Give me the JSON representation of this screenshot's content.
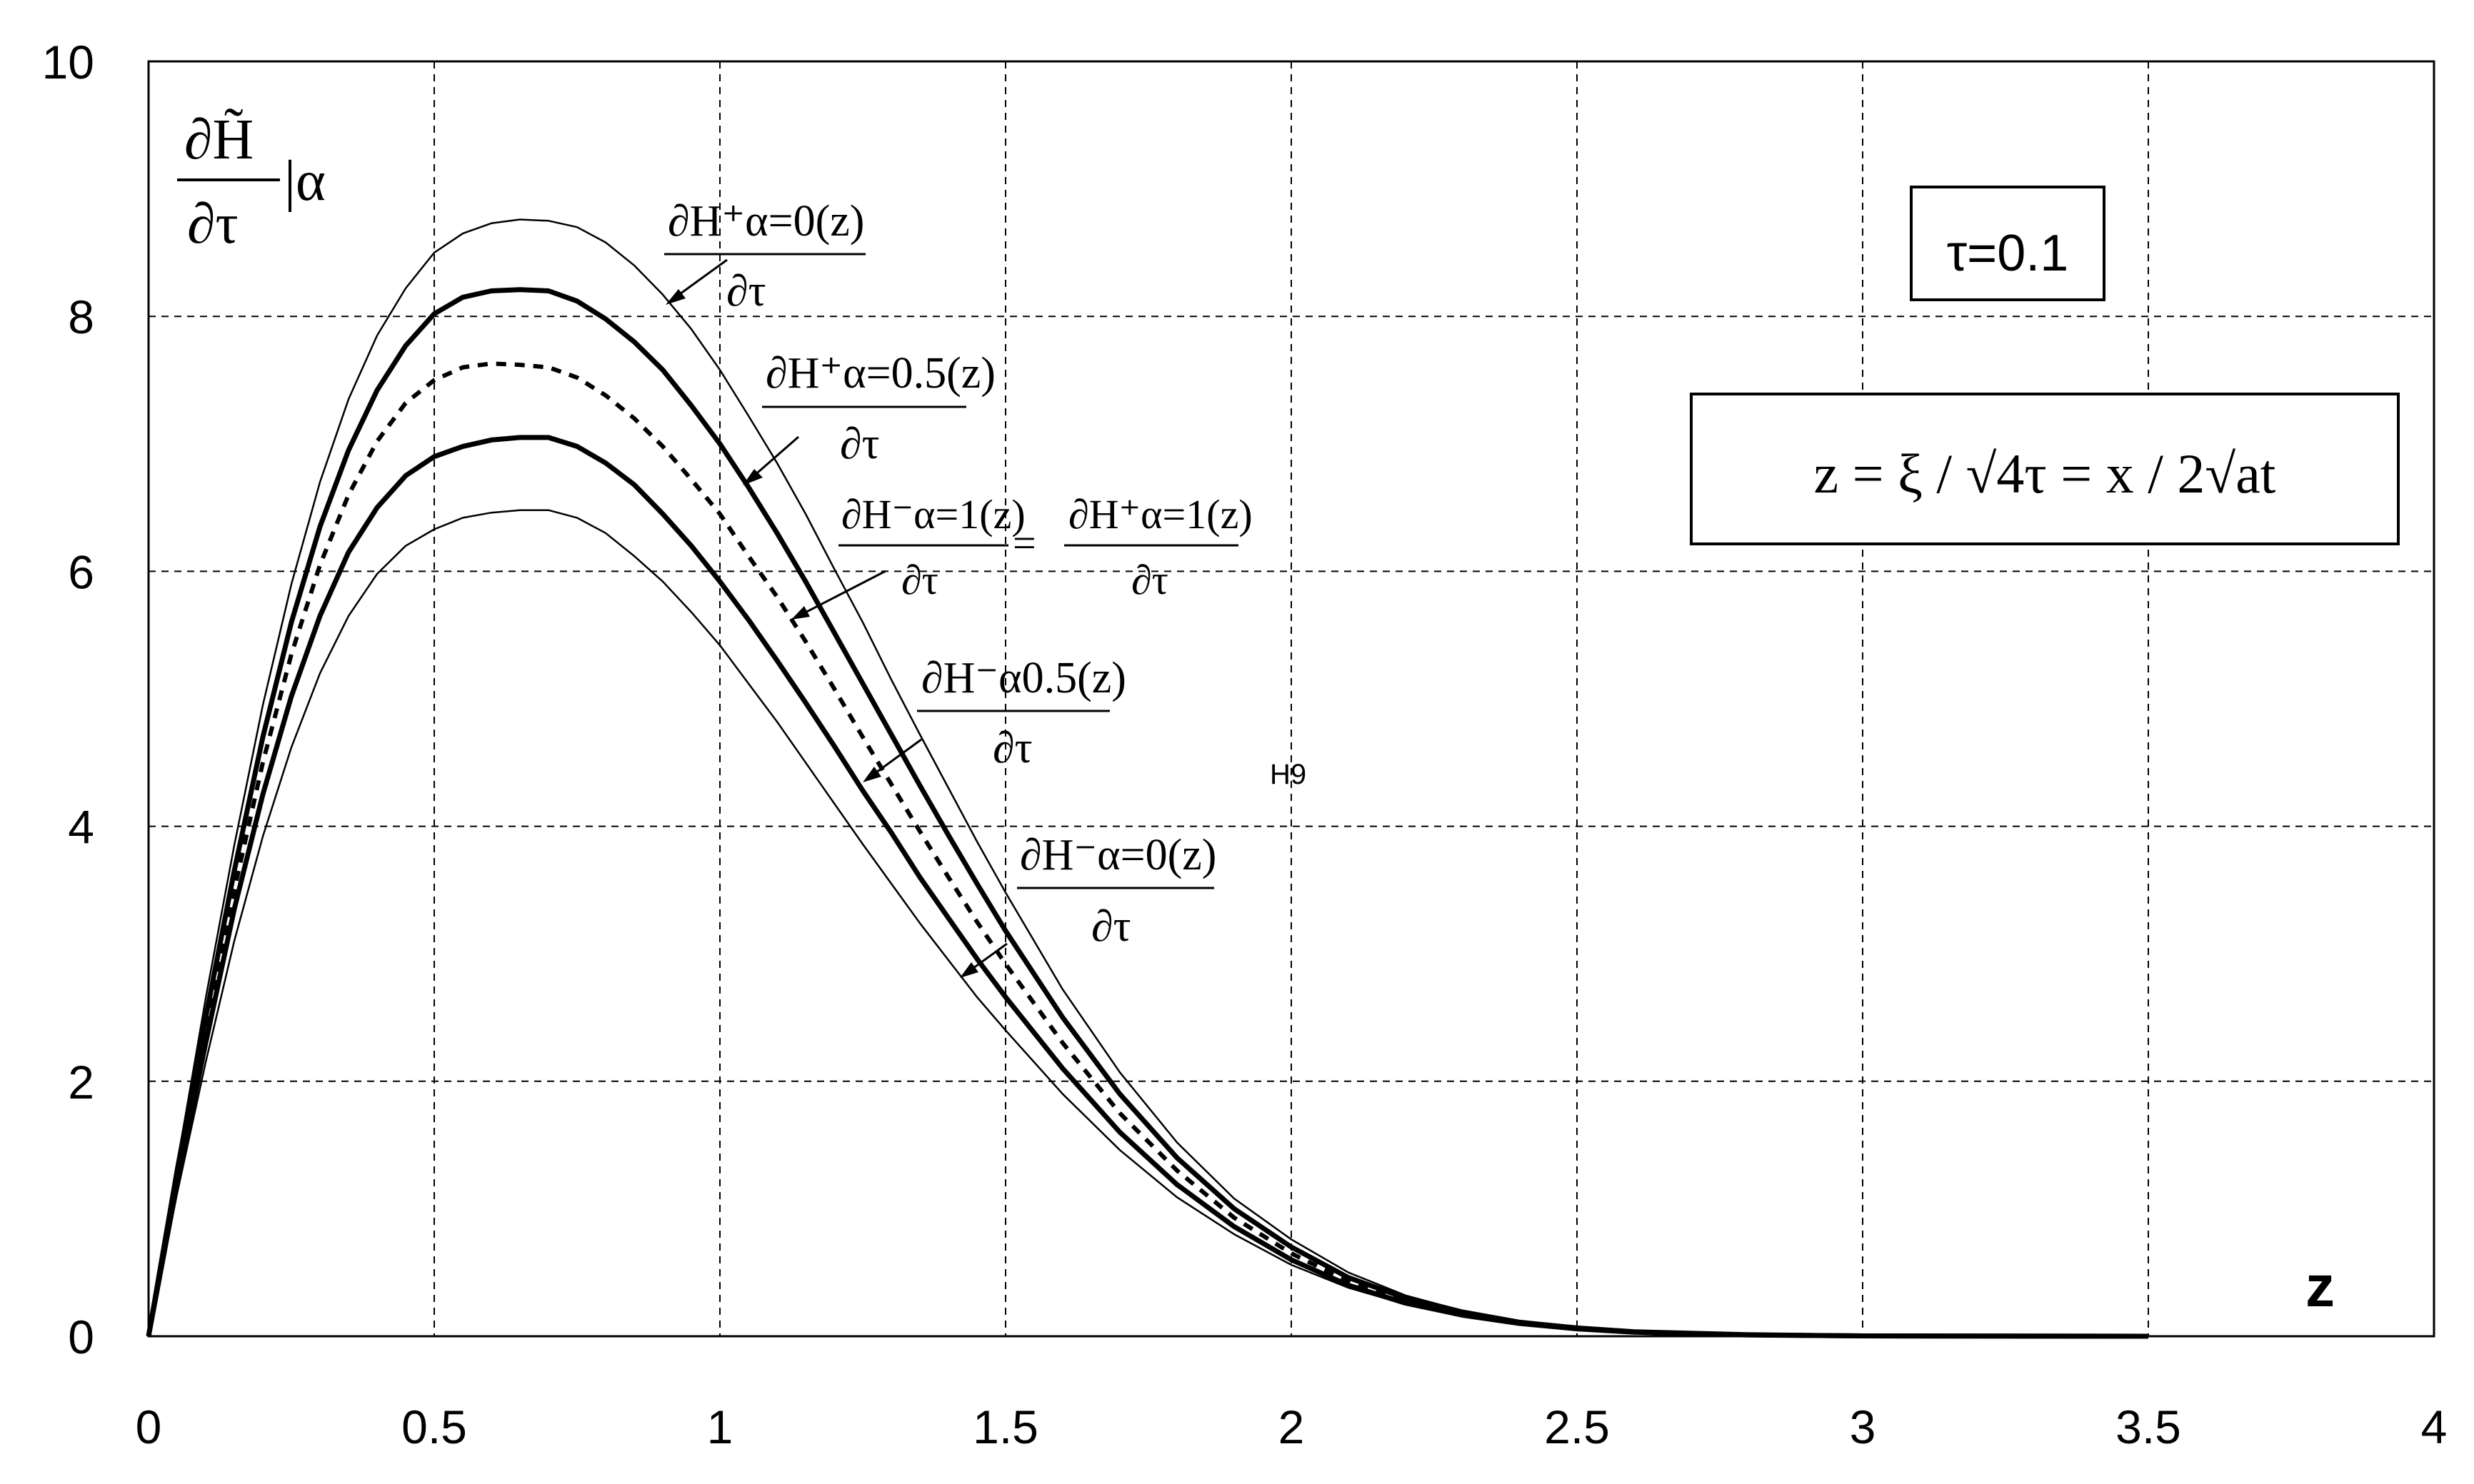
{
  "chart_data": {
    "type": "line",
    "xlim": [
      0,
      4
    ],
    "ylim": [
      0,
      10
    ],
    "x_ticks": [
      "0",
      "0.5",
      "1",
      "1.5",
      "2",
      "2.5",
      "3",
      "3.5",
      "4"
    ],
    "y_ticks": [
      "0",
      "2",
      "4",
      "6",
      "8",
      "10"
    ],
    "grid": true,
    "x_axis_label": "z",
    "y_axis_label": {
      "numerator": "∂H̃",
      "denominator": "∂τ",
      "suffix": "|α"
    },
    "tau_box": "τ=0.1",
    "formula_box": "z = ξ / √4τ = x / 2√at",
    "stray_label": "H9",
    "series": [
      {
        "label_num": "∂H⁺α=0(z)",
        "label_den": "∂τ",
        "style": "thin",
        "points": [
          [
            0,
            0
          ],
          [
            0.05,
            1.35
          ],
          [
            0.1,
            2.65
          ],
          [
            0.15,
            3.85
          ],
          [
            0.2,
            4.95
          ],
          [
            0.25,
            5.9
          ],
          [
            0.3,
            6.7
          ],
          [
            0.35,
            7.35
          ],
          [
            0.4,
            7.85
          ],
          [
            0.45,
            8.22
          ],
          [
            0.5,
            8.5
          ],
          [
            0.55,
            8.65
          ],
          [
            0.6,
            8.73
          ],
          [
            0.65,
            8.76
          ],
          [
            0.7,
            8.75
          ],
          [
            0.75,
            8.7
          ],
          [
            0.8,
            8.58
          ],
          [
            0.85,
            8.4
          ],
          [
            0.9,
            8.17
          ],
          [
            0.95,
            7.9
          ],
          [
            1.0,
            7.58
          ],
          [
            1.05,
            7.22
          ],
          [
            1.1,
            6.85
          ],
          [
            1.15,
            6.45
          ],
          [
            1.2,
            6.02
          ],
          [
            1.25,
            5.6
          ],
          [
            1.3,
            5.15
          ],
          [
            1.35,
            4.72
          ],
          [
            1.4,
            4.3
          ],
          [
            1.45,
            3.88
          ],
          [
            1.5,
            3.48
          ],
          [
            1.6,
            2.72
          ],
          [
            1.7,
            2.07
          ],
          [
            1.8,
            1.52
          ],
          [
            1.9,
            1.08
          ],
          [
            2.0,
            0.76
          ],
          [
            2.1,
            0.5
          ],
          [
            2.2,
            0.32
          ],
          [
            2.3,
            0.2
          ],
          [
            2.4,
            0.12
          ],
          [
            2.5,
            0.07
          ],
          [
            2.6,
            0.04
          ],
          [
            2.8,
            0.015
          ],
          [
            3.0,
            0.004
          ],
          [
            3.5,
            0
          ]
        ]
      },
      {
        "label_num": "∂H⁺α=0.5(z)",
        "label_den": "∂τ",
        "style": "thick",
        "points": [
          [
            0,
            0
          ],
          [
            0.05,
            1.3
          ],
          [
            0.1,
            2.5
          ],
          [
            0.15,
            3.65
          ],
          [
            0.2,
            4.7
          ],
          [
            0.25,
            5.6
          ],
          [
            0.3,
            6.35
          ],
          [
            0.35,
            6.95
          ],
          [
            0.4,
            7.42
          ],
          [
            0.45,
            7.77
          ],
          [
            0.5,
            8.02
          ],
          [
            0.55,
            8.15
          ],
          [
            0.6,
            8.2
          ],
          [
            0.65,
            8.21
          ],
          [
            0.7,
            8.2
          ],
          [
            0.75,
            8.12
          ],
          [
            0.8,
            7.98
          ],
          [
            0.85,
            7.8
          ],
          [
            0.9,
            7.58
          ],
          [
            0.95,
            7.3
          ],
          [
            1.0,
            7.0
          ],
          [
            1.05,
            6.66
          ],
          [
            1.1,
            6.3
          ],
          [
            1.15,
            5.92
          ],
          [
            1.2,
            5.52
          ],
          [
            1.25,
            5.12
          ],
          [
            1.3,
            4.72
          ],
          [
            1.35,
            4.32
          ],
          [
            1.4,
            3.93
          ],
          [
            1.45,
            3.55
          ],
          [
            1.5,
            3.18
          ],
          [
            1.6,
            2.5
          ],
          [
            1.7,
            1.9
          ],
          [
            1.8,
            1.4
          ],
          [
            1.9,
            1.0
          ],
          [
            2.0,
            0.7
          ],
          [
            2.1,
            0.46
          ],
          [
            2.2,
            0.3
          ],
          [
            2.3,
            0.19
          ],
          [
            2.4,
            0.11
          ],
          [
            2.5,
            0.065
          ],
          [
            2.6,
            0.035
          ],
          [
            2.8,
            0.012
          ],
          [
            3.0,
            0.003
          ],
          [
            3.5,
            0
          ]
        ]
      },
      {
        "label_num": "∂H⁻α=1(z)",
        "label_den": "∂τ",
        "label_eq": "=",
        "label_num2": "∂H⁺α=1(z)",
        "label_den2": "∂τ",
        "style": "dashed",
        "points": [
          [
            0,
            0
          ],
          [
            0.05,
            1.25
          ],
          [
            0.1,
            2.4
          ],
          [
            0.15,
            3.5
          ],
          [
            0.2,
            4.5
          ],
          [
            0.25,
            5.35
          ],
          [
            0.3,
            6.05
          ],
          [
            0.35,
            6.6
          ],
          [
            0.4,
            7.02
          ],
          [
            0.45,
            7.32
          ],
          [
            0.5,
            7.5
          ],
          [
            0.55,
            7.6
          ],
          [
            0.6,
            7.63
          ],
          [
            0.65,
            7.62
          ],
          [
            0.7,
            7.6
          ],
          [
            0.75,
            7.52
          ],
          [
            0.8,
            7.38
          ],
          [
            0.85,
            7.2
          ],
          [
            0.9,
            6.98
          ],
          [
            0.95,
            6.72
          ],
          [
            1.0,
            6.45
          ],
          [
            1.05,
            6.12
          ],
          [
            1.1,
            5.8
          ],
          [
            1.15,
            5.45
          ],
          [
            1.2,
            5.08
          ],
          [
            1.25,
            4.7
          ],
          [
            1.3,
            4.33
          ],
          [
            1.35,
            3.96
          ],
          [
            1.4,
            3.6
          ],
          [
            1.45,
            3.25
          ],
          [
            1.5,
            2.92
          ],
          [
            1.6,
            2.3
          ],
          [
            1.7,
            1.75
          ],
          [
            1.8,
            1.3
          ],
          [
            1.9,
            0.93
          ],
          [
            2.0,
            0.65
          ],
          [
            2.1,
            0.43
          ],
          [
            2.2,
            0.28
          ],
          [
            2.3,
            0.18
          ],
          [
            2.4,
            0.105
          ],
          [
            2.5,
            0.06
          ],
          [
            2.6,
            0.033
          ],
          [
            2.8,
            0.01
          ],
          [
            3.0,
            0.003
          ],
          [
            3.5,
            0
          ]
        ]
      },
      {
        "label_num": "∂H⁻α0.5(z)",
        "label_den": "∂τ",
        "style": "thick",
        "points": [
          [
            0,
            0
          ],
          [
            0.05,
            1.2
          ],
          [
            0.1,
            2.3
          ],
          [
            0.15,
            3.35
          ],
          [
            0.2,
            4.25
          ],
          [
            0.25,
            5.02
          ],
          [
            0.3,
            5.65
          ],
          [
            0.35,
            6.15
          ],
          [
            0.4,
            6.5
          ],
          [
            0.45,
            6.75
          ],
          [
            0.5,
            6.9
          ],
          [
            0.55,
            6.98
          ],
          [
            0.6,
            7.03
          ],
          [
            0.65,
            7.05
          ],
          [
            0.7,
            7.05
          ],
          [
            0.75,
            6.98
          ],
          [
            0.8,
            6.85
          ],
          [
            0.85,
            6.68
          ],
          [
            0.9,
            6.45
          ],
          [
            0.95,
            6.2
          ],
          [
            1.0,
            5.92
          ],
          [
            1.05,
            5.62
          ],
          [
            1.1,
            5.3
          ],
          [
            1.15,
            4.97
          ],
          [
            1.2,
            4.63
          ],
          [
            1.25,
            4.28
          ],
          [
            1.3,
            3.95
          ],
          [
            1.35,
            3.6
          ],
          [
            1.4,
            3.28
          ],
          [
            1.45,
            2.96
          ],
          [
            1.5,
            2.66
          ],
          [
            1.6,
            2.1
          ],
          [
            1.7,
            1.6
          ],
          [
            1.8,
            1.19
          ],
          [
            1.9,
            0.86
          ],
          [
            2.0,
            0.6
          ],
          [
            2.1,
            0.4
          ],
          [
            2.2,
            0.26
          ],
          [
            2.3,
            0.165
          ],
          [
            2.4,
            0.1
          ],
          [
            2.5,
            0.058
          ],
          [
            2.6,
            0.032
          ],
          [
            2.8,
            0.01
          ],
          [
            3.0,
            0.003
          ],
          [
            3.5,
            0
          ]
        ]
      },
      {
        "label_num": "∂H⁻α=0(z)",
        "label_den": "∂τ",
        "style": "thin",
        "points": [
          [
            0,
            0
          ],
          [
            0.05,
            1.12
          ],
          [
            0.1,
            2.15
          ],
          [
            0.15,
            3.1
          ],
          [
            0.2,
            3.92
          ],
          [
            0.25,
            4.62
          ],
          [
            0.3,
            5.2
          ],
          [
            0.35,
            5.65
          ],
          [
            0.4,
            5.98
          ],
          [
            0.45,
            6.2
          ],
          [
            0.5,
            6.33
          ],
          [
            0.55,
            6.42
          ],
          [
            0.6,
            6.46
          ],
          [
            0.65,
            6.48
          ],
          [
            0.7,
            6.48
          ],
          [
            0.75,
            6.42
          ],
          [
            0.8,
            6.3
          ],
          [
            0.85,
            6.12
          ],
          [
            0.9,
            5.92
          ],
          [
            0.95,
            5.68
          ],
          [
            1.0,
            5.42
          ],
          [
            1.05,
            5.12
          ],
          [
            1.1,
            4.82
          ],
          [
            1.15,
            4.5
          ],
          [
            1.2,
            4.18
          ],
          [
            1.25,
            3.86
          ],
          [
            1.3,
            3.55
          ],
          [
            1.35,
            3.24
          ],
          [
            1.4,
            2.95
          ],
          [
            1.45,
            2.66
          ],
          [
            1.5,
            2.4
          ],
          [
            1.6,
            1.9
          ],
          [
            1.7,
            1.46
          ],
          [
            1.8,
            1.09
          ],
          [
            1.9,
            0.8
          ],
          [
            2.0,
            0.56
          ],
          [
            2.1,
            0.38
          ],
          [
            2.2,
            0.25
          ],
          [
            2.3,
            0.16
          ],
          [
            2.4,
            0.095
          ],
          [
            2.5,
            0.055
          ],
          [
            2.6,
            0.03
          ],
          [
            2.8,
            0.01
          ],
          [
            3.0,
            0.003
          ],
          [
            3.5,
            0
          ]
        ]
      }
    ]
  }
}
